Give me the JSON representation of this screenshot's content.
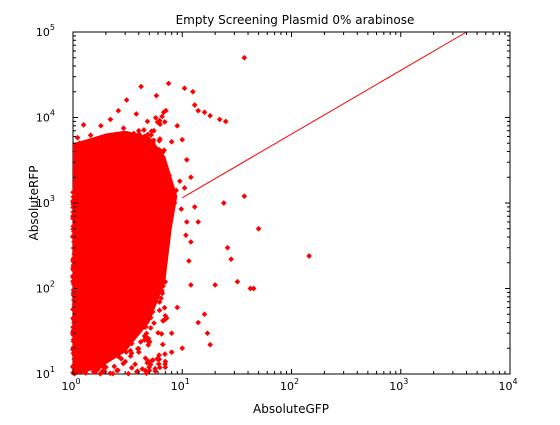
{
  "chart_data": {
    "type": "scatter",
    "title": "Empty Screening Plasmid 0% arabinose",
    "xlabel": "AbsoluteGFP",
    "ylabel": "AbsoluteRFP",
    "x_scale": "log",
    "y_scale": "log",
    "xlim": [
      1,
      10000
    ],
    "ylim": [
      10,
      100000
    ],
    "grid": false,
    "legend": "none",
    "x_ticks": [
      {
        "base": "10",
        "exp": "0"
      },
      {
        "base": "10",
        "exp": "1"
      },
      {
        "base": "10",
        "exp": "2"
      },
      {
        "base": "10",
        "exp": "3"
      },
      {
        "base": "10",
        "exp": "4"
      }
    ],
    "y_ticks": [
      {
        "base": "10",
        "exp": "1"
      },
      {
        "base": "10",
        "exp": "2"
      },
      {
        "base": "10",
        "exp": "3"
      },
      {
        "base": "10",
        "exp": "4"
      },
      {
        "base": "10",
        "exp": "5"
      }
    ],
    "series": [
      {
        "type": "scatter",
        "color": "#ff0000",
        "marker": "diamond",
        "points": [
          [
            1.0,
            12
          ],
          [
            1.05,
            30
          ],
          [
            1.1,
            80
          ],
          [
            1.15,
            200
          ],
          [
            1.2,
            500
          ],
          [
            1.25,
            1200
          ],
          [
            1.3,
            2500
          ],
          [
            1.0,
            400
          ],
          [
            1.05,
            1500
          ],
          [
            1.1,
            3000
          ],
          [
            1.15,
            5000
          ],
          [
            1.2,
            700
          ],
          [
            1.3,
            60
          ],
          [
            1.35,
            15
          ],
          [
            1.4,
            900
          ],
          [
            1.5,
            2000
          ],
          [
            1.6,
            3500
          ],
          [
            1.7,
            4500
          ],
          [
            1.8,
            1800
          ],
          [
            1.9,
            600
          ],
          [
            2.0,
            250
          ],
          [
            2.1,
            100
          ],
          [
            2.2,
            40
          ],
          [
            2.3,
            20
          ],
          [
            2.5,
            1500
          ],
          [
            2.7,
            2800
          ],
          [
            3.0,
            3600
          ],
          [
            3.3,
            5500
          ],
          [
            3.6,
            6500
          ],
          [
            4.0,
            7000
          ],
          [
            4.5,
            6000
          ],
          [
            5.0,
            3000
          ],
          [
            5.5,
            1200
          ],
          [
            6.0,
            500
          ],
          [
            6.5,
            250
          ],
          [
            7.0,
            120
          ],
          [
            3.0,
            60
          ],
          [
            3.5,
            30
          ],
          [
            4.0,
            18
          ],
          [
            2.0,
            12
          ],
          [
            1.6,
            10.5
          ],
          [
            1.8,
            8000
          ],
          [
            2.2,
            9500
          ],
          [
            2.6,
            12000
          ],
          [
            3.1,
            16000
          ],
          [
            4.2,
            23000
          ],
          [
            5.8,
            18000
          ],
          [
            7.5,
            25000
          ],
          [
            10.5,
            22000
          ],
          [
            12.5,
            20000
          ],
          [
            13,
            14000
          ],
          [
            14,
            12000
          ],
          [
            16,
            11500
          ],
          [
            18,
            10500
          ],
          [
            22,
            9500
          ],
          [
            25,
            9000
          ],
          [
            9.0,
            8000
          ],
          [
            10.0,
            5500
          ],
          [
            11,
            3200
          ],
          [
            12,
            2000
          ],
          [
            8.5,
            1000
          ],
          [
            9.5,
            1800
          ],
          [
            10.5,
            1500
          ],
          [
            11,
            600
          ],
          [
            12,
            350
          ],
          [
            13,
            900
          ],
          [
            14,
            600
          ],
          [
            16,
            50
          ],
          [
            17,
            30
          ],
          [
            18,
            22
          ],
          [
            14,
            40
          ],
          [
            24,
            1000
          ],
          [
            26,
            300
          ],
          [
            37,
            50000
          ],
          [
            37,
            1200
          ],
          [
            32,
            120
          ],
          [
            42,
            100
          ],
          [
            45,
            100
          ],
          [
            50,
            500
          ],
          [
            145,
            240
          ],
          [
            20,
            110
          ],
          [
            28,
            220
          ],
          [
            9,
            60
          ],
          [
            8,
            30
          ],
          [
            10,
            20
          ],
          [
            6,
            15
          ],
          [
            5,
            11
          ],
          [
            7,
            14
          ],
          [
            6.5,
            4000
          ],
          [
            5.5,
            7000
          ],
          [
            8,
            5200
          ],
          [
            4.8,
            9000
          ],
          [
            3.8,
            11000
          ],
          [
            2.9,
            7500
          ],
          [
            1.9,
            4200
          ],
          [
            1.45,
            6200
          ],
          [
            1.25,
            8200
          ],
          [
            1.1,
            5800
          ],
          [
            2.4,
            3200
          ],
          [
            3.2,
            900
          ],
          [
            4.2,
            400
          ],
          [
            5.2,
            180
          ],
          [
            6.2,
            90
          ],
          [
            7.2,
            45
          ],
          [
            2.8,
            45
          ],
          [
            2.5,
            25
          ],
          [
            1.7,
            14
          ],
          [
            1.3,
            11
          ],
          [
            1.55,
            55
          ],
          [
            1.9,
            130
          ],
          [
            2.3,
            350
          ],
          [
            2.8,
            900
          ],
          [
            3.5,
            2300
          ],
          [
            4.4,
            3900
          ],
          [
            5.3,
            4700
          ],
          [
            6.4,
            3300
          ],
          [
            7.6,
            2100
          ],
          [
            8.8,
            1400
          ],
          [
            9.8,
            850
          ],
          [
            10.8,
            420
          ],
          [
            11.5,
            210
          ],
          [
            12.0,
            110
          ],
          [
            7.0,
            12
          ],
          [
            8.0,
            18
          ],
          [
            4.5,
            25
          ],
          [
            3.7,
            13
          ],
          [
            2.6,
            16
          ]
        ]
      },
      {
        "type": "line",
        "color": "#ff0000",
        "points": [
          [
            10,
            1150
          ],
          [
            4000,
            100000
          ]
        ]
      }
    ]
  }
}
